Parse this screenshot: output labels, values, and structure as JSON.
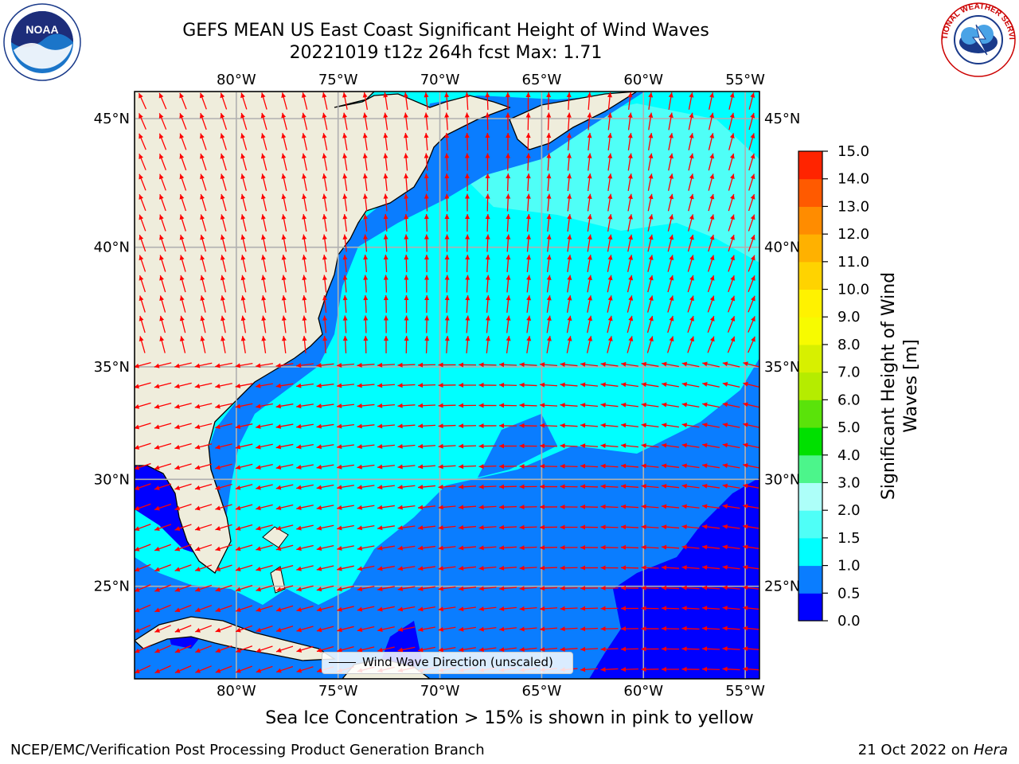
{
  "title": {
    "line1": "GEFS MEAN US East Coast Significant Height of Wind Waves",
    "line2": "20221019 t12z 264h fcst   Max: 1.71"
  },
  "map": {
    "lat_labels": [
      "45°N",
      "40°N",
      "35°N",
      "30°N",
      "25°N"
    ],
    "lon_labels": [
      "80°W",
      "75°W",
      "70°W",
      "65°W",
      "60°W",
      "55°W"
    ],
    "lon_range": [
      -85,
      -54.3
    ],
    "lat_range": [
      20.5,
      46
    ],
    "colors": {
      "land": "#efeddc",
      "band_0_0_5": "#0000ff",
      "band_0_5_1_0": "#0a7dff",
      "band_1_0_1_5": "#00ffff",
      "band_1_5_2_0": "#4ffff7",
      "arrow": "#ff0000",
      "grid": "#b0b0b0"
    },
    "legend_label": "Wind Wave Direction (unscaled)"
  },
  "colorbar": {
    "label_line1": "Significant Height of Wind",
    "label_line2": "Waves [m]",
    "ticks": [
      "0.0",
      "0.5",
      "1.0",
      "1.5",
      "2.0",
      "3.0",
      "4.0",
      "5.0",
      "6.0",
      "7.0",
      "8.0",
      "9.0",
      "10.0",
      "11.0",
      "12.0",
      "13.0",
      "14.0",
      "15.0"
    ],
    "colors": [
      "#0000ff",
      "#0a7dff",
      "#00ffff",
      "#4ffff7",
      "#adfff9",
      "#4cf58b",
      "#00e000",
      "#5ae30a",
      "#b5ec00",
      "#d7f000",
      "#f7fb00",
      "#fff200",
      "#ffd300",
      "#ffb100",
      "#ff8c00",
      "#ff5a00",
      "#ff2400"
    ]
  },
  "note": "Sea Ice Concentration > 15% is shown in pink to yellow",
  "footer": {
    "left": "NCEP/EMC/Verification Post Processing Product Generation Branch",
    "right_date": "21 Oct 2022 on ",
    "right_machine": "Hera"
  },
  "logos": {
    "noaa_text": "NOAA",
    "nws_text": "NATIONAL WEATHER SERVICE"
  }
}
